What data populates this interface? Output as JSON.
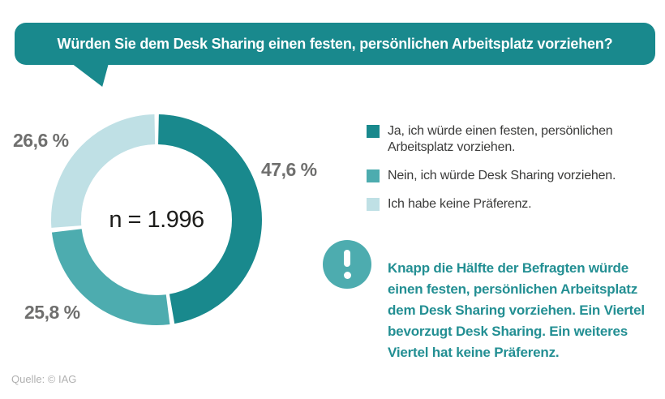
{
  "title_bubble": {
    "text": "Würden Sie dem Desk Sharing einen festen, persönlichen Arbeitsplatz vorziehen?"
  },
  "chart_data": {
    "type": "pie",
    "variant": "donut",
    "title": "Würden Sie dem Desk Sharing einen festen, persönlichen Arbeitsplatz vorziehen?",
    "categories": [
      "Ja, ich würde einen festen, persönlichen Arbeitsplatz vorziehen.",
      "Nein, ich würde Desk Sharing vorziehen.",
      "Ich habe keine Präferenz."
    ],
    "values": [
      47.6,
      25.8,
      26.6
    ],
    "value_labels": [
      "47,6 %",
      "25,8 %",
      "26,6 %"
    ],
    "colors": [
      "#19898d",
      "#4dacaf",
      "#bfe0e5"
    ],
    "center_label": "n = 1.996",
    "n": 1996,
    "start_angle_deg": 0,
    "direction": "clockwise",
    "legend_position": "right"
  },
  "note": {
    "icon": "exclamation-icon",
    "text": "Knapp die Hälfte der Befragten würde einen festen, persönlichen Arbeitsplatz dem Desk Sharing vorziehen. Ein Viertel bevorzugt Desk Sharing. Ein weiteres Viertel hat keine Präferenz."
  },
  "source": {
    "text": "Quelle: © IAG"
  },
  "colors": {
    "accent_dark": "#19898d",
    "accent_medium": "#4dacaf",
    "accent_light": "#bfe0e5",
    "note_text": "#238f93",
    "label_gray": "#6f6f6e",
    "body_text": "#3b3b3a",
    "center_text": "#1d1d1b",
    "source_gray": "#b1b1b1",
    "background": "#ffffff"
  }
}
